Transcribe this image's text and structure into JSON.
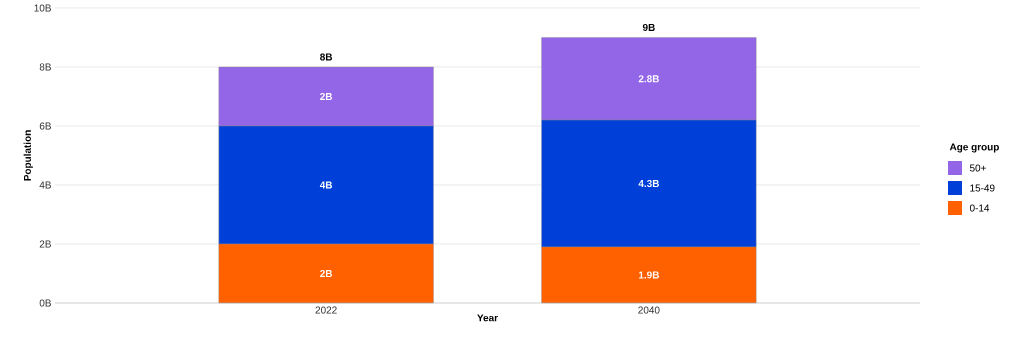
{
  "chart_data": {
    "type": "bar",
    "stacked": true,
    "xlabel": "Year",
    "ylabel": "Population",
    "legend_title": "Age group",
    "categories": [
      "2022",
      "2040"
    ],
    "series": [
      {
        "name": "0-14",
        "color": "#ff6000",
        "values": [
          2,
          1.9
        ],
        "value_labels": [
          "2B",
          "1.9B"
        ]
      },
      {
        "name": "15-49",
        "color": "#0040d8",
        "values": [
          4,
          4.3
        ],
        "value_labels": [
          "4B",
          "4.3B"
        ]
      },
      {
        "name": "50+",
        "color": "#9366e8",
        "values": [
          2,
          2.8
        ],
        "value_labels": [
          "2B",
          "2.8B"
        ]
      }
    ],
    "totals": [
      "8B",
      "9B"
    ],
    "ylim": [
      0,
      10
    ],
    "yticks": [
      {
        "value": 0,
        "label": "0B"
      },
      {
        "value": 2,
        "label": "2B"
      },
      {
        "value": 4,
        "label": "4B"
      },
      {
        "value": 6,
        "label": "6B"
      },
      {
        "value": 8,
        "label": "8B"
      },
      {
        "value": 10,
        "label": "10B"
      }
    ],
    "grid": "y",
    "legend": "right"
  }
}
